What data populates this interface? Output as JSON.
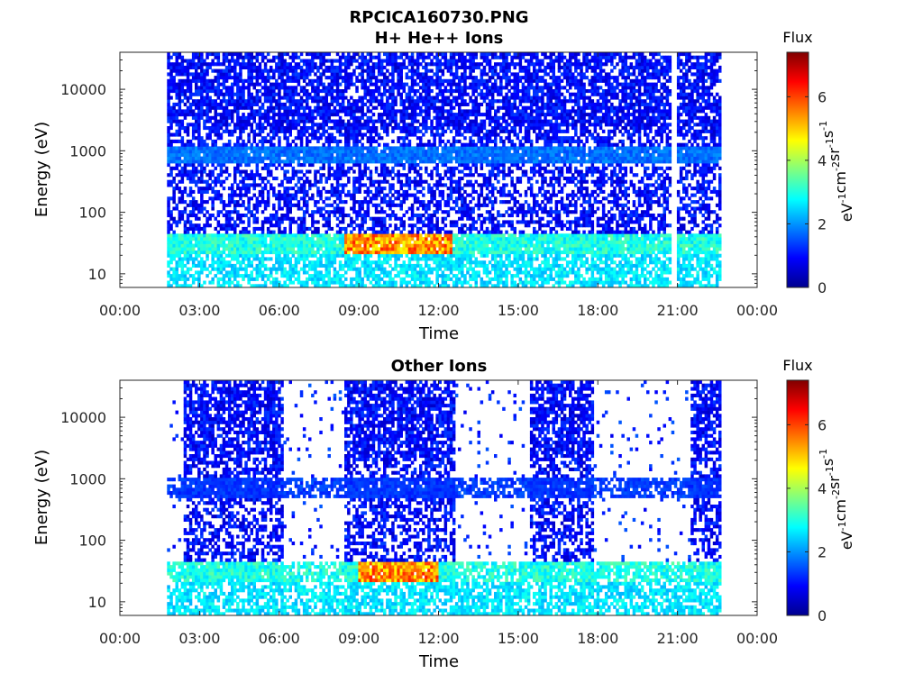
{
  "figure": {
    "title": "RPCICA160730.PNG"
  },
  "colors": {
    "background": "#ffffff",
    "axis": "#262626",
    "text": "#262626",
    "colormap": "jet"
  },
  "chart_data": [
    {
      "type": "heatmap",
      "title": "H+ He++ Ions",
      "xlabel": "Time",
      "ylabel": "Energy (eV)",
      "x_ticks": [
        "00:00",
        "03:00",
        "06:00",
        "09:00",
        "12:00",
        "15:00",
        "18:00",
        "21:00",
        "00:00"
      ],
      "xlim_hours": [
        0,
        24
      ],
      "y_scale": "log",
      "y_ticks": [
        "10",
        "100",
        "1000",
        "10000"
      ],
      "ylim": [
        6,
        40000
      ],
      "grid": false,
      "colorbar": {
        "label": "Flux",
        "units": "eV⁻¹cm⁻²sr⁻¹s⁻¹",
        "units_parts": [
          "eV",
          "-1",
          "cm",
          "-2",
          "sr",
          "-1",
          "s",
          "-1"
        ],
        "ticks": [
          "0",
          "2",
          "4",
          "6"
        ],
        "range": [
          0,
          7.4
        ]
      },
      "data_coverage_hours": [
        [
          1.8,
          20.8
        ],
        [
          21.0,
          22.6
        ]
      ],
      "bands": [
        {
          "name": "low-energy ions",
          "energy_eV": [
            20,
            45
          ],
          "peak_flux": 6.0,
          "peak_hours": [
            8.5,
            12.5
          ]
        },
        {
          "name": "~1 keV band",
          "energy_eV": [
            600,
            1200
          ],
          "peak_flux": 3.5
        }
      ]
    },
    {
      "type": "heatmap",
      "title": "Other Ions",
      "xlabel": "Time",
      "ylabel": "Energy (eV)",
      "x_ticks": [
        "00:00",
        "03:00",
        "06:00",
        "09:00",
        "12:00",
        "15:00",
        "18:00",
        "21:00",
        "00:00"
      ],
      "xlim_hours": [
        0,
        24
      ],
      "y_scale": "log",
      "y_ticks": [
        "10",
        "100",
        "1000",
        "10000"
      ],
      "ylim": [
        6,
        40000
      ],
      "grid": false,
      "colorbar": {
        "label": "Flux",
        "units": "eV⁻¹cm⁻²sr⁻¹s⁻¹",
        "units_parts": [
          "eV",
          "-1",
          "cm",
          "-2",
          "sr",
          "-1",
          "s",
          "-1"
        ],
        "ticks": [
          "0",
          "2",
          "4",
          "6"
        ],
        "range": [
          0,
          7.4
        ]
      },
      "dense_intervals_hours": [
        [
          2.4,
          6.2
        ],
        [
          8.4,
          12.6
        ],
        [
          15.4,
          17.8
        ],
        [
          21.5,
          22.6
        ]
      ],
      "bands": [
        {
          "name": "low-energy ions",
          "energy_eV": [
            20,
            45
          ],
          "peak_flux": 6.0,
          "peak_hours": [
            9.0,
            12.0
          ]
        },
        {
          "name": "~1 keV band",
          "energy_eV": [
            500,
            1100
          ],
          "peak_flux": 2.6
        }
      ]
    }
  ]
}
